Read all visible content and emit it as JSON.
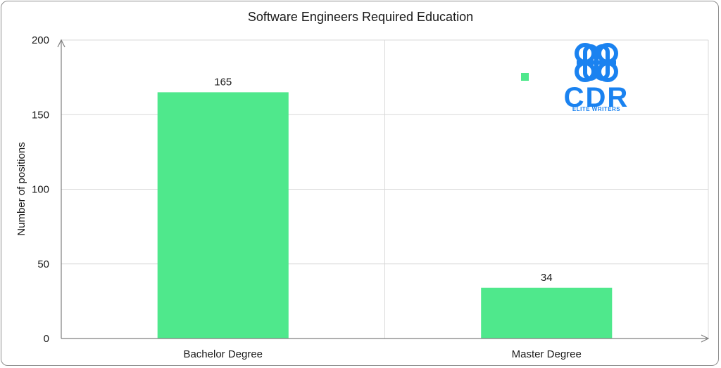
{
  "chart_data": {
    "type": "bar",
    "title": "Software Engineers Required Education",
    "xlabel": "",
    "ylabel": "Number of positions",
    "categories": [
      "Bachelor Degree",
      "Master Degree"
    ],
    "values": [
      165,
      34
    ],
    "data_labels": [
      "165",
      "34"
    ],
    "ylim": [
      0,
      200
    ],
    "yticks": [
      0,
      50,
      100,
      150,
      200
    ],
    "grid": true,
    "bar_color": "#4fe88c",
    "legend": "top-right"
  },
  "logo": {
    "text": "CDR",
    "subtitle": "ELITE WRITERS",
    "color": "#1a82f0"
  }
}
